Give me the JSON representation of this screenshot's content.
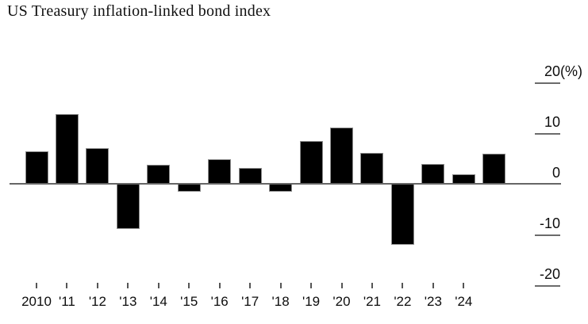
{
  "title": "US Treasury inflation-linked bond index",
  "chart_data": {
    "type": "bar",
    "title": "US Treasury inflation-linked bond index",
    "xlabel": "",
    "ylabel": "(%)",
    "ylim": [
      -20,
      20
    ],
    "grid": false,
    "legend": null,
    "axis_side": "right",
    "categories": [
      "2010",
      "'11",
      "'12",
      "'13",
      "'14",
      "'15",
      "'16",
      "'17",
      "'18",
      "'19",
      "'20",
      "'21",
      "'22",
      "'23",
      "'24",
      ""
    ],
    "values": [
      6.3,
      13.6,
      7.0,
      -8.6,
      3.6,
      -1.4,
      4.7,
      3.0,
      -1.3,
      8.4,
      11.0,
      6.0,
      -11.8,
      3.9,
      1.8,
      5.8
    ],
    "y_ticks": [
      {
        "label": "20",
        "suffix": "(%)",
        "value": 20
      },
      {
        "label": "10",
        "suffix": "",
        "value": 10
      },
      {
        "label": "0",
        "suffix": "",
        "value": 0
      },
      {
        "label": "-10",
        "suffix": "",
        "value": -10
      },
      {
        "label": "-20",
        "suffix": "",
        "value": -20
      }
    ],
    "colors": {
      "bar_fill": "#000000",
      "bar_stroke": "#8d8d8d",
      "axis_line": "#666666",
      "text": "#0d0d0d"
    }
  }
}
